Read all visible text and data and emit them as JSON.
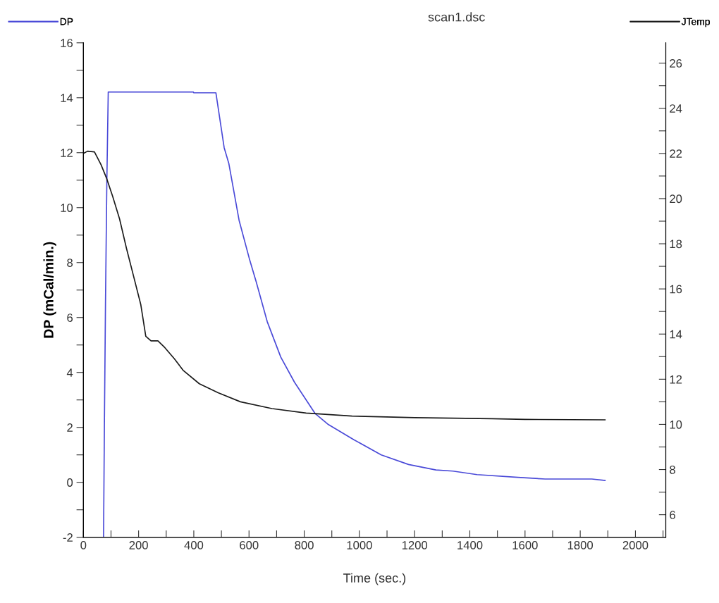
{
  "chart_data": {
    "type": "line",
    "title": "scan1.dsc",
    "xlabel": "Time (sec.)",
    "ylabel": "DP (mCal/min.)",
    "legend": "top",
    "grid": false,
    "marker": "none",
    "line_style": "solid",
    "xlim": [
      0,
      2110
    ],
    "xticks": [
      0,
      {
        "value": 100,
        "label": null
      },
      200,
      {
        "value": 300,
        "label": null
      },
      400,
      {
        "value": 500,
        "label": null
      },
      600,
      {
        "value": 700,
        "label": null
      },
      800,
      {
        "value": 900,
        "label": null
      },
      1000,
      {
        "value": 1100,
        "label": null
      },
      1200,
      {
        "value": 1300,
        "label": null
      },
      1400,
      {
        "value": 1500,
        "label": null
      },
      1600,
      {
        "value": 1700,
        "label": null
      },
      1800,
      {
        "value": 1900,
        "label": null
      },
      2000,
      {
        "value": 2100,
        "label": null
      }
    ],
    "ylim": [
      -2,
      16
    ],
    "yticks": [
      -2,
      {
        "value": -1,
        "label": null
      },
      0,
      {
        "value": 1,
        "label": null
      },
      2,
      {
        "value": 3,
        "label": null
      },
      4,
      {
        "value": 5,
        "label": null
      },
      6,
      {
        "value": 7,
        "label": null
      },
      8,
      {
        "value": 9,
        "label": null
      },
      10,
      {
        "value": 11,
        "label": null
      },
      12,
      {
        "value": 13,
        "label": null
      },
      14,
      {
        "value": 15,
        "label": null
      },
      16
    ],
    "y2lim": [
      5,
      26.9
    ],
    "y2ticks": [
      6,
      {
        "value": 7,
        "label": null
      },
      8,
      {
        "value": 9,
        "label": null
      },
      10,
      {
        "value": 11,
        "label": null
      },
      12,
      {
        "value": 13,
        "label": null
      },
      14,
      {
        "value": 15,
        "label": null
      },
      16,
      {
        "value": 17,
        "label": null
      },
      18,
      {
        "value": 19,
        "label": null
      },
      20,
      {
        "value": 21,
        "label": null
      },
      22,
      {
        "value": 23,
        "label": null
      },
      24,
      {
        "value": 25,
        "label": null
      },
      26
    ],
    "series": [
      {
        "name": "DP",
        "color": "#4a4ad8",
        "x": [
          73,
          76,
          80,
          85,
          90,
          398,
          400,
          480,
          510,
          527,
          564,
          601,
          626,
          666,
          715,
          765,
          839,
          888,
          980,
          1079,
          1178,
          1277,
          1339,
          1426,
          1574,
          1673,
          1842,
          1890
        ],
        "values": [
          -2,
          2,
          6.5,
          11,
          14.21,
          14.21,
          14.18,
          14.18,
          12.18,
          11.6,
          9.54,
          8.15,
          7.3,
          5.85,
          4.56,
          3.64,
          2.51,
          2.1,
          1.55,
          1.0,
          0.65,
          0.45,
          0.41,
          0.28,
          0.18,
          0.12,
          0.12,
          0.07
        ]
      },
      {
        "name": "JTemp",
        "color": "#1a1a1a",
        "axis": "y2",
        "x": [
          0,
          15,
          40,
          64,
          84,
          106,
          131,
          156,
          181,
          208,
          226,
          245,
          270,
          295,
          330,
          361,
          420,
          488,
          569,
          683,
          807,
          973,
          1200,
          1480,
          1600,
          1890
        ],
        "values": [
          22.0,
          22.1,
          22.07,
          21.5,
          20.9,
          20.1,
          19.1,
          17.8,
          16.6,
          15.3,
          13.9,
          13.7,
          13.7,
          13.4,
          12.9,
          12.4,
          11.8,
          11.4,
          11.0,
          10.7,
          10.5,
          10.37,
          10.3,
          10.25,
          10.22,
          10.2
        ]
      }
    ]
  }
}
